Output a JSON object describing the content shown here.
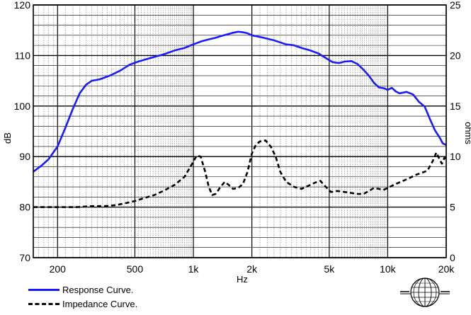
{
  "chart_data": {
    "type": "line",
    "xlabel": "Hz",
    "ylabel_left": "dB",
    "ylabel_right": "ohms",
    "x_scale": "log",
    "xlim": [
      150,
      20000
    ],
    "ylim_left": [
      70,
      120
    ],
    "ylim_right": [
      0,
      25
    ],
    "grid": true,
    "x_ticks": [
      {
        "value": 200,
        "label": "200"
      },
      {
        "value": 500,
        "label": "500"
      },
      {
        "value": 1000,
        "label": "1k"
      },
      {
        "value": 2000,
        "label": "2k"
      },
      {
        "value": 5000,
        "label": "5k"
      },
      {
        "value": 10000,
        "label": "10k"
      },
      {
        "value": 20000,
        "label": "20k"
      }
    ],
    "y_ticks_left": [
      "70",
      "80",
      "90",
      "100",
      "110",
      "120"
    ],
    "y_ticks_right": [
      "0",
      "5",
      "10",
      "15",
      "20",
      "25"
    ],
    "legend_placement": "bottom-left",
    "series": [
      {
        "name": "Response Curve.",
        "axis": "left",
        "color": "#1a1aff",
        "style": "solid",
        "points": [
          [
            150,
            87.0
          ],
          [
            165,
            88.2
          ],
          [
            180,
            89.5
          ],
          [
            200,
            92.0
          ],
          [
            220,
            95.8
          ],
          [
            240,
            99.5
          ],
          [
            260,
            102.5
          ],
          [
            280,
            104.2
          ],
          [
            300,
            105.0
          ],
          [
            330,
            105.3
          ],
          [
            370,
            106.0
          ],
          [
            420,
            107.0
          ],
          [
            470,
            108.2
          ],
          [
            520,
            108.8
          ],
          [
            600,
            109.5
          ],
          [
            700,
            110.2
          ],
          [
            800,
            111.0
          ],
          [
            900,
            111.5
          ],
          [
            1000,
            112.2
          ],
          [
            1100,
            112.8
          ],
          [
            1200,
            113.2
          ],
          [
            1300,
            113.5
          ],
          [
            1400,
            113.9
          ],
          [
            1500,
            114.2
          ],
          [
            1600,
            114.5
          ],
          [
            1700,
            114.7
          ],
          [
            1800,
            114.6
          ],
          [
            1900,
            114.4
          ],
          [
            2000,
            114.0
          ],
          [
            2300,
            113.5
          ],
          [
            2600,
            113.0
          ],
          [
            3000,
            112.2
          ],
          [
            3300,
            112.0
          ],
          [
            3600,
            111.5
          ],
          [
            4000,
            111.0
          ],
          [
            4400,
            110.4
          ],
          [
            4800,
            109.5
          ],
          [
            5200,
            108.7
          ],
          [
            5600,
            108.5
          ],
          [
            6000,
            108.8
          ],
          [
            6500,
            108.9
          ],
          [
            7000,
            108.3
          ],
          [
            7500,
            107.2
          ],
          [
            8000,
            106.0
          ],
          [
            8500,
            104.6
          ],
          [
            9000,
            103.7
          ],
          [
            9600,
            103.5
          ],
          [
            10000,
            103.2
          ],
          [
            10500,
            103.6
          ],
          [
            11000,
            102.9
          ],
          [
            11500,
            102.5
          ],
          [
            12500,
            102.8
          ],
          [
            13500,
            102.3
          ],
          [
            14500,
            100.8
          ],
          [
            15500,
            99.9
          ],
          [
            16500,
            97.4
          ],
          [
            17500,
            95.2
          ],
          [
            18500,
            93.8
          ],
          [
            19200,
            92.6
          ],
          [
            20000,
            92.3
          ]
        ]
      },
      {
        "name": "Impedance Curve.",
        "axis": "right",
        "color": "#000000",
        "style": "dashed",
        "points": [
          [
            150,
            5.0
          ],
          [
            200,
            5.0
          ],
          [
            250,
            5.0
          ],
          [
            300,
            5.1
          ],
          [
            350,
            5.1
          ],
          [
            400,
            5.2
          ],
          [
            450,
            5.4
          ],
          [
            500,
            5.6
          ],
          [
            560,
            5.9
          ],
          [
            630,
            6.2
          ],
          [
            700,
            6.6
          ],
          [
            800,
            7.2
          ],
          [
            900,
            8.0
          ],
          [
            980,
            9.2
          ],
          [
            1040,
            10.1
          ],
          [
            1090,
            10.0
          ],
          [
            1150,
            8.5
          ],
          [
            1200,
            7.0
          ],
          [
            1250,
            6.2
          ],
          [
            1300,
            6.3
          ],
          [
            1380,
            7.0
          ],
          [
            1450,
            7.5
          ],
          [
            1520,
            7.2
          ],
          [
            1600,
            6.8
          ],
          [
            1700,
            6.9
          ],
          [
            1800,
            7.3
          ],
          [
            1900,
            8.5
          ],
          [
            2000,
            10.3
          ],
          [
            2100,
            11.2
          ],
          [
            2200,
            11.5
          ],
          [
            2350,
            11.6
          ],
          [
            2500,
            11.0
          ],
          [
            2650,
            10.0
          ],
          [
            2800,
            8.5
          ],
          [
            3000,
            7.5
          ],
          [
            3300,
            7.0
          ],
          [
            3600,
            6.8
          ],
          [
            3900,
            7.1
          ],
          [
            4200,
            7.4
          ],
          [
            4500,
            7.6
          ],
          [
            4800,
            7.0
          ],
          [
            5100,
            6.5
          ],
          [
            5500,
            6.6
          ],
          [
            6000,
            6.5
          ],
          [
            6500,
            6.4
          ],
          [
            7000,
            6.3
          ],
          [
            7500,
            6.3
          ],
          [
            8000,
            6.6
          ],
          [
            8500,
            6.9
          ],
          [
            9000,
            6.8
          ],
          [
            9500,
            6.7
          ],
          [
            10000,
            6.9
          ],
          [
            11000,
            7.3
          ],
          [
            12000,
            7.6
          ],
          [
            13000,
            7.9
          ],
          [
            14000,
            8.2
          ],
          [
            15000,
            8.4
          ],
          [
            16000,
            8.6
          ],
          [
            17000,
            9.5
          ],
          [
            17800,
            10.4
          ],
          [
            18400,
            9.8
          ],
          [
            19000,
            9.3
          ],
          [
            19600,
            9.9
          ],
          [
            20000,
            9.6
          ]
        ]
      }
    ]
  },
  "legend": {
    "response_label": "Response Curve.",
    "impedance_label": "Impedance Curve."
  },
  "colors": {
    "response": "#1a1aff",
    "impedance": "#000000",
    "grid": "#000000",
    "background": "#ffffff"
  },
  "logo": {
    "icon": "globe-logo-icon"
  }
}
